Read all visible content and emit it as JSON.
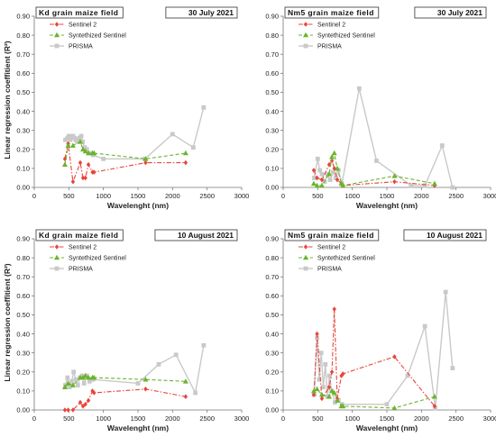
{
  "figure": {
    "shared_ylabel": "Linear regression coeffitient (R²)"
  },
  "chart_data": [
    {
      "type": "line",
      "field": "Kd grain maize field",
      "date": "30 July 2021",
      "xlabel": "Wavelenght (nm)",
      "ylabel": "Linear regression coeffitient (R²)",
      "xlim": [
        0,
        3000
      ],
      "ylim": [
        0,
        0.9
      ],
      "xticks": [
        "0",
        "500",
        "1000",
        "1500",
        "2000",
        "2500",
        "3000"
      ],
      "yticks": [
        "0.00",
        "0.10",
        "0.20",
        "0.30",
        "0.40",
        "0.50",
        "0.60",
        "0.70",
        "0.80",
        "0.90"
      ],
      "legend_position": "top-left",
      "series": [
        {
          "name": "Sentinel 2",
          "color": "#e8453c",
          "marker": "diamond",
          "x": [
            443,
            490,
            560,
            665,
            705,
            740,
            783,
            842,
            865,
            1610,
            2190
          ],
          "y": [
            0.15,
            0.23,
            0.03,
            0.13,
            0.05,
            0.05,
            0.12,
            0.08,
            0.08,
            0.13,
            0.13
          ]
        },
        {
          "name": "Syntethized Sentinel",
          "color": "#6ab42d",
          "marker": "triangle",
          "x": [
            443,
            490,
            560,
            665,
            705,
            740,
            783,
            842,
            865,
            1610,
            2190
          ],
          "y": [
            0.12,
            0.22,
            0.22,
            0.24,
            0.2,
            0.19,
            0.18,
            0.18,
            0.18,
            0.15,
            0.18
          ]
        },
        {
          "name": "PRISMA",
          "color": "#c9c9c9",
          "marker": "square",
          "x": [
            450,
            480,
            500,
            520,
            540,
            560,
            580,
            600,
            620,
            650,
            680,
            700,
            730,
            760,
            800,
            850,
            1000,
            1600,
            2000,
            2300,
            2450
          ],
          "y": [
            0.25,
            0.26,
            0.27,
            0.25,
            0.26,
            0.27,
            0.26,
            0.25,
            0.24,
            0.26,
            0.27,
            0.24,
            0.21,
            0.2,
            0.18,
            0.17,
            0.15,
            0.15,
            0.28,
            0.21,
            0.42
          ]
        }
      ]
    },
    {
      "type": "line",
      "field": "Nm5 grain maize field",
      "date": "30 July 2021",
      "xlabel": "Wavelenght (nm)",
      "ylabel": "",
      "xlim": [
        0,
        3000
      ],
      "ylim": [
        0,
        0.9
      ],
      "xticks": [
        "0",
        "500",
        "1000",
        "1500",
        "2000",
        "2500",
        "3000"
      ],
      "yticks": [
        "0.00",
        "0.10",
        "0.20",
        "0.30",
        "0.40",
        "0.50",
        "0.60",
        "0.70",
        "0.80",
        "0.90"
      ],
      "legend_position": "top-left",
      "series": [
        {
          "name": "Sentinel 2",
          "color": "#e8453c",
          "marker": "diamond",
          "x": [
            443,
            490,
            560,
            665,
            705,
            740,
            783,
            842,
            865,
            1610,
            2190
          ],
          "y": [
            0.09,
            0.05,
            0.04,
            0.12,
            0.14,
            0.1,
            0.04,
            0.02,
            0.01,
            0.03,
            0.01
          ]
        },
        {
          "name": "Syntethized Sentinel",
          "color": "#6ab42d",
          "marker": "triangle",
          "x": [
            443,
            490,
            560,
            665,
            705,
            740,
            783,
            842,
            865,
            1610,
            2190
          ],
          "y": [
            0.02,
            0.01,
            0.01,
            0.07,
            0.16,
            0.18,
            0.1,
            0.02,
            0.01,
            0.06,
            0.02
          ]
        },
        {
          "name": "PRISMA",
          "color": "#c9c9c9",
          "marker": "square",
          "x": [
            450,
            500,
            530,
            560,
            600,
            640,
            680,
            720,
            760,
            800,
            850,
            1100,
            1350,
            1850,
            2050,
            2300,
            2450
          ],
          "y": [
            0.05,
            0.15,
            0.09,
            0.07,
            0.03,
            0.07,
            0.04,
            0.08,
            0.05,
            0.09,
            0.02,
            0.52,
            0.14,
            0.01,
            0.01,
            0.22,
            0.0
          ]
        }
      ]
    },
    {
      "type": "line",
      "field": "Kd grain maize field",
      "date": "10 August 2021",
      "xlabel": "Wavelenght (nm)",
      "ylabel": "Linear regression coeffitient (R²)",
      "xlim": [
        0,
        3000
      ],
      "ylim": [
        0,
        0.9
      ],
      "xticks": [
        "0",
        "500",
        "1000",
        "1500",
        "2000",
        "2500",
        "3000"
      ],
      "yticks": [
        "0.00",
        "0.10",
        "0.20",
        "0.30",
        "0.40",
        "0.50",
        "0.60",
        "0.70",
        "0.80",
        "0.90"
      ],
      "legend_position": "top-left",
      "series": [
        {
          "name": "Sentinel 2",
          "color": "#e8453c",
          "marker": "diamond",
          "x": [
            443,
            490,
            560,
            665,
            705,
            740,
            783,
            842,
            865,
            1610,
            2190
          ],
          "y": [
            0.0,
            0.0,
            0.0,
            0.04,
            0.02,
            0.03,
            0.05,
            0.1,
            0.09,
            0.11,
            0.07
          ]
        },
        {
          "name": "Syntethized Sentinel",
          "color": "#6ab42d",
          "marker": "triangle",
          "x": [
            443,
            490,
            560,
            665,
            705,
            740,
            783,
            842,
            865,
            1610,
            2190
          ],
          "y": [
            0.12,
            0.14,
            0.13,
            0.17,
            0.17,
            0.18,
            0.17,
            0.17,
            0.17,
            0.16,
            0.15
          ]
        },
        {
          "name": "PRISMA",
          "color": "#c9c9c9",
          "marker": "square",
          "x": [
            450,
            480,
            510,
            540,
            570,
            600,
            630,
            660,
            690,
            720,
            760,
            800,
            850,
            1500,
            1800,
            2050,
            2330,
            2450
          ],
          "y": [
            0.13,
            0.17,
            0.12,
            0.15,
            0.2,
            0.16,
            0.13,
            0.17,
            0.18,
            0.14,
            0.18,
            0.15,
            0.16,
            0.14,
            0.24,
            0.29,
            0.09,
            0.34
          ]
        }
      ]
    },
    {
      "type": "line",
      "field": "Nm5 grain maize field",
      "date": "10 August 2021",
      "xlabel": "Wavelenght (nm)",
      "ylabel": "",
      "xlim": [
        0,
        3000
      ],
      "ylim": [
        0,
        0.9
      ],
      "xticks": [
        "0",
        "500",
        "1000",
        "1500",
        "2000",
        "2500",
        "3000"
      ],
      "yticks": [
        "0.00",
        "0.10",
        "0.20",
        "0.30",
        "0.40",
        "0.50",
        "0.60",
        "0.70",
        "0.80",
        "0.90"
      ],
      "legend_position": "top-left",
      "series": [
        {
          "name": "Sentinel 2",
          "color": "#e8453c",
          "marker": "diamond",
          "x": [
            443,
            490,
            560,
            665,
            705,
            740,
            783,
            842,
            865,
            1610,
            2190
          ],
          "y": [
            0.08,
            0.4,
            0.06,
            0.12,
            0.2,
            0.53,
            0.06,
            0.18,
            0.19,
            0.28,
            0.02
          ]
        },
        {
          "name": "Syntethized Sentinel",
          "color": "#6ab42d",
          "marker": "triangle",
          "x": [
            443,
            490,
            560,
            665,
            705,
            740,
            783,
            842,
            865,
            1610,
            2190
          ],
          "y": [
            0.1,
            0.11,
            0.08,
            0.07,
            0.1,
            0.09,
            0.05,
            0.02,
            0.02,
            0.01,
            0.07
          ]
        },
        {
          "name": "PRISMA",
          "color": "#c9c9c9",
          "marker": "square",
          "x": [
            450,
            490,
            520,
            550,
            580,
            610,
            640,
            670,
            700,
            750,
            800,
            850,
            1500,
            1800,
            2050,
            2200,
            2350,
            2450
          ],
          "y": [
            0.08,
            0.38,
            0.16,
            0.3,
            0.12,
            0.24,
            0.07,
            0.18,
            0.1,
            0.04,
            0.05,
            0.03,
            0.03,
            0.18,
            0.44,
            0.01,
            0.62,
            0.22
          ]
        }
      ]
    }
  ]
}
